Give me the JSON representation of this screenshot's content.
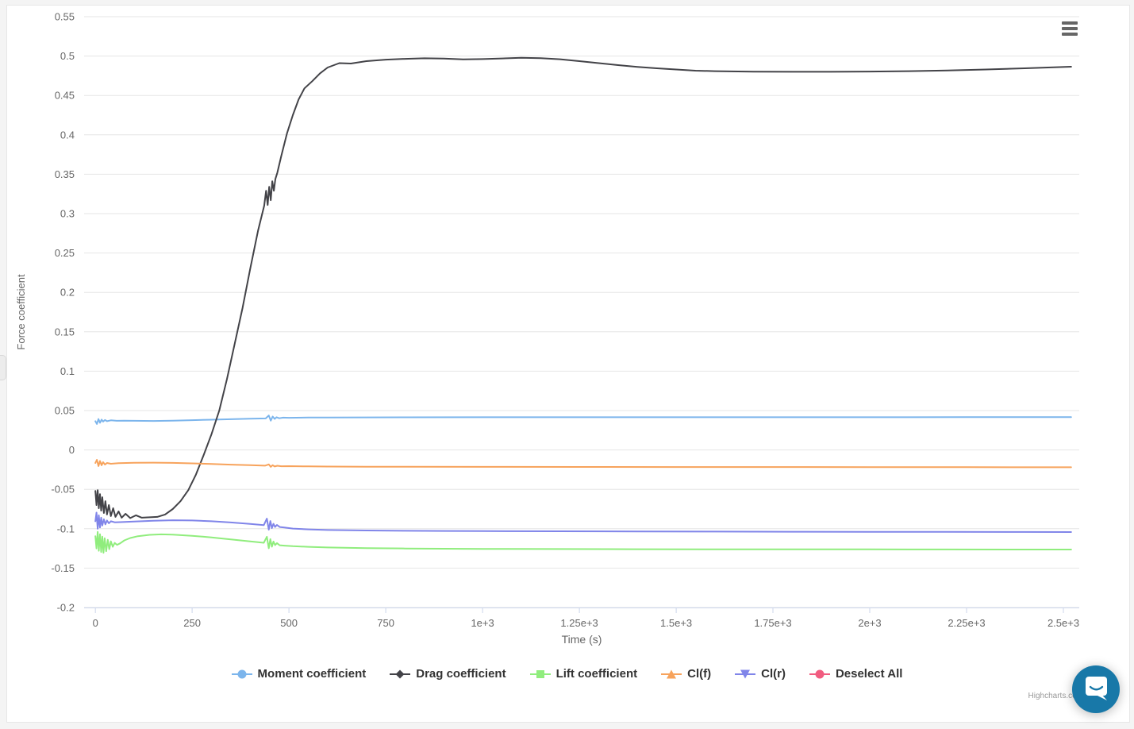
{
  "page": {
    "background": "#f4f4f4",
    "card_background": "#ffffff",
    "card_border": "#e7e7e7"
  },
  "menu": {
    "icon": "hamburger-icon",
    "color": "#666666"
  },
  "credits": {
    "label": "Highcharts.com",
    "color": "#999999"
  },
  "chat_widget": {
    "color": "#1878a8",
    "icon": "speech-bubble-smile-icon"
  },
  "chart_data": {
    "type": "line",
    "title": "",
    "xlabel": "Time (s)",
    "ylabel": "Force coefficient",
    "xlim": [
      -29,
      2541
    ],
    "ylim": [
      -0.2,
      0.55
    ],
    "grid": true,
    "legend_position": "bottom",
    "grid_color": "#e6e6e6",
    "axis_line_color": "#ccd6eb",
    "label_color": "#666666",
    "x_ticks": [
      {
        "value": 0,
        "label": "0"
      },
      {
        "value": 250,
        "label": "250"
      },
      {
        "value": 500,
        "label": "500"
      },
      {
        "value": 750,
        "label": "750"
      },
      {
        "value": 1000,
        "label": "1e+3"
      },
      {
        "value": 1250,
        "label": "1.25e+3"
      },
      {
        "value": 1500,
        "label": "1.5e+3"
      },
      {
        "value": 1750,
        "label": "1.75e+3"
      },
      {
        "value": 2000,
        "label": "2e+3"
      },
      {
        "value": 2250,
        "label": "2.25e+3"
      },
      {
        "value": 2500,
        "label": "2.5e+3"
      }
    ],
    "y_ticks": [
      {
        "value": 0.55,
        "label": "0.55"
      },
      {
        "value": 0.5,
        "label": "0.5"
      },
      {
        "value": 0.45,
        "label": "0.45"
      },
      {
        "value": 0.4,
        "label": "0.4"
      },
      {
        "value": 0.35,
        "label": "0.35"
      },
      {
        "value": 0.3,
        "label": "0.3"
      },
      {
        "value": 0.25,
        "label": "0.25"
      },
      {
        "value": 0.2,
        "label": "0.2"
      },
      {
        "value": 0.15,
        "label": "0.15"
      },
      {
        "value": 0.1,
        "label": "0.1"
      },
      {
        "value": 0.05,
        "label": "0.05"
      },
      {
        "value": 0,
        "label": "0"
      },
      {
        "value": -0.05,
        "label": "-0.05"
      },
      {
        "value": -0.1,
        "label": "-0.1"
      },
      {
        "value": -0.15,
        "label": "-0.15"
      },
      {
        "value": -0.2,
        "label": "-0.2"
      }
    ],
    "series": [
      {
        "name": "Moment coefficient",
        "color": "#7cb5ec",
        "marker": "circle",
        "points": [
          [
            0,
            0.0365
          ],
          [
            4,
            0.033
          ],
          [
            8,
            0.0392
          ],
          [
            12,
            0.0345
          ],
          [
            16,
            0.0385
          ],
          [
            20,
            0.036
          ],
          [
            25,
            0.038
          ],
          [
            30,
            0.0365
          ],
          [
            40,
            0.0376
          ],
          [
            55,
            0.037
          ],
          [
            75,
            0.0372
          ],
          [
            100,
            0.037
          ],
          [
            150,
            0.0368
          ],
          [
            200,
            0.0372
          ],
          [
            250,
            0.0378
          ],
          [
            300,
            0.0384
          ],
          [
            350,
            0.039
          ],
          [
            400,
            0.0396
          ],
          [
            440,
            0.04
          ],
          [
            448,
            0.0438
          ],
          [
            453,
            0.0372
          ],
          [
            458,
            0.0424
          ],
          [
            463,
            0.0394
          ],
          [
            468,
            0.0415
          ],
          [
            475,
            0.0402
          ],
          [
            485,
            0.041
          ],
          [
            500,
            0.0408
          ],
          [
            550,
            0.0411
          ],
          [
            600,
            0.0412
          ],
          [
            700,
            0.0413
          ],
          [
            800,
            0.0414
          ],
          [
            1000,
            0.0415
          ],
          [
            1250,
            0.0415
          ],
          [
            1500,
            0.0415
          ],
          [
            1750,
            0.0415
          ],
          [
            2000,
            0.0415
          ],
          [
            2250,
            0.0416
          ],
          [
            2520,
            0.0416
          ]
        ]
      },
      {
        "name": "Drag coefficient",
        "color": "#434348",
        "marker": "diamond",
        "points": [
          [
            0,
            -0.052
          ],
          [
            3,
            -0.07
          ],
          [
            6,
            -0.051
          ],
          [
            9,
            -0.074
          ],
          [
            12,
            -0.056
          ],
          [
            15,
            -0.077
          ],
          [
            18,
            -0.06
          ],
          [
            22,
            -0.08
          ],
          [
            26,
            -0.065
          ],
          [
            30,
            -0.082
          ],
          [
            35,
            -0.07
          ],
          [
            40,
            -0.084
          ],
          [
            46,
            -0.074
          ],
          [
            52,
            -0.085
          ],
          [
            60,
            -0.078
          ],
          [
            68,
            -0.086
          ],
          [
            78,
            -0.081
          ],
          [
            90,
            -0.0865
          ],
          [
            105,
            -0.083
          ],
          [
            120,
            -0.086
          ],
          [
            140,
            -0.0855
          ],
          [
            160,
            -0.085
          ],
          [
            180,
            -0.082
          ],
          [
            200,
            -0.075
          ],
          [
            220,
            -0.065
          ],
          [
            240,
            -0.051
          ],
          [
            260,
            -0.031
          ],
          [
            280,
            -0.006
          ],
          [
            300,
            0.02
          ],
          [
            320,
            0.05
          ],
          [
            340,
            0.09
          ],
          [
            360,
            0.135
          ],
          [
            380,
            0.18
          ],
          [
            400,
            0.23
          ],
          [
            420,
            0.278
          ],
          [
            436,
            0.31
          ],
          [
            441,
            0.329
          ],
          [
            445,
            0.311
          ],
          [
            449,
            0.334
          ],
          [
            453,
            0.317
          ],
          [
            457,
            0.341
          ],
          [
            461,
            0.329
          ],
          [
            465,
            0.344
          ],
          [
            470,
            0.352
          ],
          [
            480,
            0.373
          ],
          [
            495,
            0.402
          ],
          [
            510,
            0.425
          ],
          [
            525,
            0.445
          ],
          [
            540,
            0.459
          ],
          [
            560,
            0.468
          ],
          [
            580,
            0.478
          ],
          [
            600,
            0.4855
          ],
          [
            630,
            0.491
          ],
          [
            660,
            0.4905
          ],
          [
            700,
            0.4935
          ],
          [
            750,
            0.4955
          ],
          [
            800,
            0.4965
          ],
          [
            850,
            0.4972
          ],
          [
            900,
            0.4968
          ],
          [
            950,
            0.4958
          ],
          [
            1000,
            0.4962
          ],
          [
            1050,
            0.497
          ],
          [
            1100,
            0.4978
          ],
          [
            1150,
            0.4974
          ],
          [
            1200,
            0.496
          ],
          [
            1250,
            0.4935
          ],
          [
            1300,
            0.491
          ],
          [
            1350,
            0.4885
          ],
          [
            1400,
            0.4863
          ],
          [
            1450,
            0.4845
          ],
          [
            1500,
            0.483
          ],
          [
            1550,
            0.4815
          ],
          [
            1600,
            0.4808
          ],
          [
            1700,
            0.4802
          ],
          [
            1800,
            0.48
          ],
          [
            1900,
            0.48
          ],
          [
            2000,
            0.4803
          ],
          [
            2100,
            0.4808
          ],
          [
            2200,
            0.4818
          ],
          [
            2300,
            0.483
          ],
          [
            2400,
            0.4845
          ],
          [
            2460,
            0.4855
          ],
          [
            2520,
            0.4865
          ]
        ]
      },
      {
        "name": "Lift coefficient",
        "color": "#90ed7d",
        "marker": "square",
        "points": [
          [
            0,
            -0.1095
          ],
          [
            3,
            -0.125
          ],
          [
            6,
            -0.104
          ],
          [
            9,
            -0.128
          ],
          [
            12,
            -0.107
          ],
          [
            15,
            -0.1295
          ],
          [
            18,
            -0.11
          ],
          [
            21,
            -0.1305
          ],
          [
            24,
            -0.112
          ],
          [
            28,
            -0.1285
          ],
          [
            32,
            -0.114
          ],
          [
            36,
            -0.126
          ],
          [
            40,
            -0.116
          ],
          [
            45,
            -0.123
          ],
          [
            50,
            -0.118
          ],
          [
            56,
            -0.1205
          ],
          [
            64,
            -0.1185
          ],
          [
            75,
            -0.1148
          ],
          [
            90,
            -0.1118
          ],
          [
            110,
            -0.1095
          ],
          [
            140,
            -0.1078
          ],
          [
            170,
            -0.1072
          ],
          [
            200,
            -0.1075
          ],
          [
            250,
            -0.109
          ],
          [
            300,
            -0.111
          ],
          [
            350,
            -0.1135
          ],
          [
            400,
            -0.116
          ],
          [
            435,
            -0.1178
          ],
          [
            443,
            -0.1102
          ],
          [
            448,
            -0.1248
          ],
          [
            452,
            -0.1132
          ],
          [
            456,
            -0.1228
          ],
          [
            460,
            -0.1162
          ],
          [
            464,
            -0.1208
          ],
          [
            469,
            -0.1182
          ],
          [
            476,
            -0.121
          ],
          [
            488,
            -0.1215
          ],
          [
            510,
            -0.1222
          ],
          [
            550,
            -0.123
          ],
          [
            600,
            -0.1238
          ],
          [
            700,
            -0.1246
          ],
          [
            800,
            -0.1251
          ],
          [
            900,
            -0.1254
          ],
          [
            1000,
            -0.1256
          ],
          [
            1200,
            -0.1258
          ],
          [
            1400,
            -0.126
          ],
          [
            1600,
            -0.1261
          ],
          [
            1800,
            -0.1262
          ],
          [
            2000,
            -0.1262
          ],
          [
            2200,
            -0.1263
          ],
          [
            2400,
            -0.1264
          ],
          [
            2520,
            -0.1264
          ]
        ]
      },
      {
        "name": "Cl(f)",
        "color": "#f7a35c",
        "marker": "triangle",
        "points": [
          [
            0,
            -0.0165
          ],
          [
            4,
            -0.0125
          ],
          [
            8,
            -0.0205
          ],
          [
            12,
            -0.014
          ],
          [
            16,
            -0.0195
          ],
          [
            20,
            -0.0155
          ],
          [
            25,
            -0.0185
          ],
          [
            30,
            -0.0165
          ],
          [
            40,
            -0.0175
          ],
          [
            60,
            -0.0167
          ],
          [
            100,
            -0.0162
          ],
          [
            150,
            -0.0161
          ],
          [
            200,
            -0.0164
          ],
          [
            250,
            -0.017
          ],
          [
            300,
            -0.0178
          ],
          [
            350,
            -0.0186
          ],
          [
            400,
            -0.0194
          ],
          [
            438,
            -0.02
          ],
          [
            448,
            -0.0183
          ],
          [
            453,
            -0.0215
          ],
          [
            458,
            -0.0194
          ],
          [
            463,
            -0.021
          ],
          [
            470,
            -0.0201
          ],
          [
            480,
            -0.0207
          ],
          [
            500,
            -0.0206
          ],
          [
            550,
            -0.0209
          ],
          [
            600,
            -0.0211
          ],
          [
            700,
            -0.0213
          ],
          [
            800,
            -0.0214
          ],
          [
            1000,
            -0.0215
          ],
          [
            1250,
            -0.0216
          ],
          [
            1500,
            -0.0217
          ],
          [
            1750,
            -0.0217
          ],
          [
            2000,
            -0.0218
          ],
          [
            2250,
            -0.0219
          ],
          [
            2520,
            -0.022
          ]
        ]
      },
      {
        "name": "Cl(r)",
        "color": "#8085e9",
        "marker": "triangle-down",
        "points": [
          [
            0,
            -0.0905
          ],
          [
            3,
            -0.0795
          ],
          [
            6,
            -0.1
          ],
          [
            9,
            -0.083
          ],
          [
            12,
            -0.0985
          ],
          [
            15,
            -0.086
          ],
          [
            18,
            -0.096
          ],
          [
            22,
            -0.088
          ],
          [
            26,
            -0.0945
          ],
          [
            30,
            -0.0895
          ],
          [
            35,
            -0.093
          ],
          [
            40,
            -0.0905
          ],
          [
            50,
            -0.0918
          ],
          [
            70,
            -0.0915
          ],
          [
            100,
            -0.0908
          ],
          [
            150,
            -0.0898
          ],
          [
            200,
            -0.0892
          ],
          [
            250,
            -0.0895
          ],
          [
            300,
            -0.0905
          ],
          [
            350,
            -0.092
          ],
          [
            400,
            -0.094
          ],
          [
            435,
            -0.0955
          ],
          [
            443,
            -0.0872
          ],
          [
            448,
            -0.1012
          ],
          [
            452,
            -0.0902
          ],
          [
            456,
            -0.0992
          ],
          [
            460,
            -0.0938
          ],
          [
            464,
            -0.0978
          ],
          [
            469,
            -0.0952
          ],
          [
            476,
            -0.0978
          ],
          [
            488,
            -0.0985
          ],
          [
            510,
            -0.0998
          ],
          [
            550,
            -0.1008
          ],
          [
            600,
            -0.1016
          ],
          [
            700,
            -0.1022
          ],
          [
            800,
            -0.1026
          ],
          [
            900,
            -0.1028
          ],
          [
            1000,
            -0.103
          ],
          [
            1200,
            -0.1032
          ],
          [
            1400,
            -0.1034
          ],
          [
            1600,
            -0.1036
          ],
          [
            1800,
            -0.1038
          ],
          [
            2000,
            -0.1039
          ],
          [
            2200,
            -0.104
          ],
          [
            2400,
            -0.1041
          ],
          [
            2520,
            -0.1042
          ]
        ]
      },
      {
        "name": "Deselect All",
        "color": "#f15c80",
        "marker": "circle",
        "points": []
      }
    ]
  }
}
